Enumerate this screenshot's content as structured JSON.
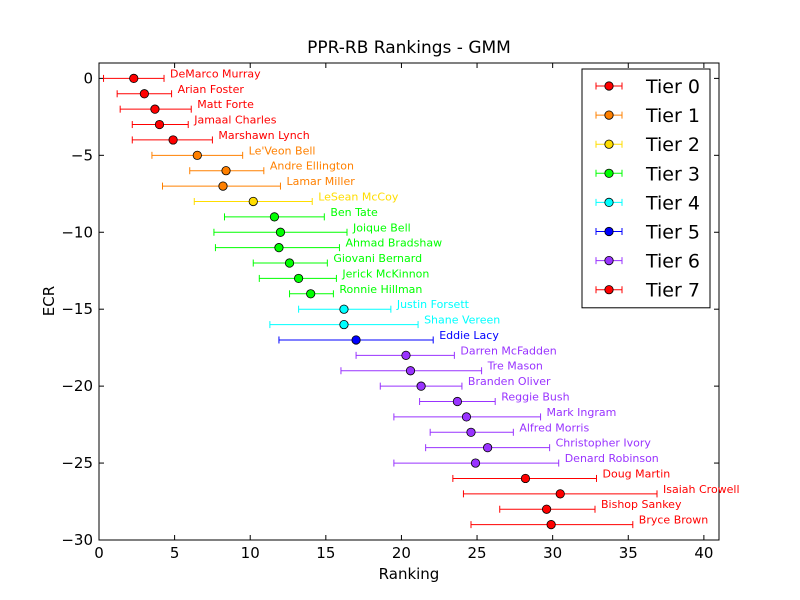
{
  "chart_data": {
    "type": "scatter",
    "title": "PPR-RB Rankings - GMM",
    "xlabel": "Ranking",
    "ylabel": "ECR",
    "xlim": [
      0,
      41
    ],
    "ylim": [
      -30,
      1
    ],
    "x_ticks": [
      0,
      5,
      10,
      15,
      20,
      25,
      30,
      35,
      40
    ],
    "x_tick_labels": [
      "0",
      "5",
      "10",
      "15",
      "20",
      "25",
      "30",
      "35",
      "40"
    ],
    "y_ticks": [
      0,
      -5,
      -10,
      -15,
      -20,
      -25,
      -30
    ],
    "y_tick_labels": [
      "0",
      "−5",
      "−10",
      "−15",
      "−20",
      "−25",
      "−30"
    ],
    "grid": false,
    "legend_position": "top-right",
    "tiers": [
      {
        "name": "Tier 0",
        "color": "#ff0000"
      },
      {
        "name": "Tier 1",
        "color": "#ff8000"
      },
      {
        "name": "Tier 2",
        "color": "#ffdd00"
      },
      {
        "name": "Tier 3",
        "color": "#00ff00"
      },
      {
        "name": "Tier 4",
        "color": "#00ffff"
      },
      {
        "name": "Tier 5",
        "color": "#0000ff"
      },
      {
        "name": "Tier 6",
        "color": "#9933ff"
      },
      {
        "name": "Tier 7",
        "color": "#ff0000"
      }
    ],
    "points": [
      {
        "label": "DeMarco Murray",
        "tier": 0,
        "x": 2.3,
        "y": 0,
        "xmin": 0.3,
        "xmax": 4.3
      },
      {
        "label": "Arian Foster",
        "tier": 0,
        "x": 3.0,
        "y": -1,
        "xmin": 1.2,
        "xmax": 4.8
      },
      {
        "label": "Matt Forte",
        "tier": 0,
        "x": 3.7,
        "y": -2,
        "xmin": 1.4,
        "xmax": 6.1
      },
      {
        "label": "Jamaal Charles",
        "tier": 0,
        "x": 4.0,
        "y": -3,
        "xmin": 2.2,
        "xmax": 5.9
      },
      {
        "label": "Marshawn Lynch",
        "tier": 0,
        "x": 4.9,
        "y": -4,
        "xmin": 2.2,
        "xmax": 7.5
      },
      {
        "label": "Le'Veon Bell",
        "tier": 1,
        "x": 6.5,
        "y": -5,
        "xmin": 3.5,
        "xmax": 9.5
      },
      {
        "label": "Andre Ellington",
        "tier": 1,
        "x": 8.4,
        "y": -6,
        "xmin": 6.0,
        "xmax": 10.9
      },
      {
        "label": "Lamar Miller",
        "tier": 1,
        "x": 8.2,
        "y": -7,
        "xmin": 4.2,
        "xmax": 12.0
      },
      {
        "label": "LeSean McCoy",
        "tier": 2,
        "x": 10.2,
        "y": -8,
        "xmin": 6.3,
        "xmax": 14.1
      },
      {
        "label": "Ben Tate",
        "tier": 3,
        "x": 11.6,
        "y": -9,
        "xmin": 8.3,
        "xmax": 14.9
      },
      {
        "label": "Joique Bell",
        "tier": 3,
        "x": 12.0,
        "y": -10,
        "xmin": 7.6,
        "xmax": 16.4
      },
      {
        "label": "Ahmad Bradshaw",
        "tier": 3,
        "x": 11.9,
        "y": -11,
        "xmin": 7.7,
        "xmax": 15.9
      },
      {
        "label": "Giovani Bernard",
        "tier": 3,
        "x": 12.6,
        "y": -12,
        "xmin": 10.2,
        "xmax": 15.1
      },
      {
        "label": "Jerick McKinnon",
        "tier": 3,
        "x": 13.2,
        "y": -13,
        "xmin": 10.6,
        "xmax": 15.7
      },
      {
        "label": "Ronnie Hillman",
        "tier": 3,
        "x": 14.0,
        "y": -14,
        "xmin": 12.6,
        "xmax": 15.5
      },
      {
        "label": "Justin Forsett",
        "tier": 4,
        "x": 16.2,
        "y": -15,
        "xmin": 13.2,
        "xmax": 19.3
      },
      {
        "label": "Shane Vereen",
        "tier": 4,
        "x": 16.2,
        "y": -16,
        "xmin": 11.3,
        "xmax": 21.1
      },
      {
        "label": "Eddie Lacy",
        "tier": 5,
        "x": 17.0,
        "y": -17,
        "xmin": 11.9,
        "xmax": 22.1
      },
      {
        "label": "Darren McFadden",
        "tier": 6,
        "x": 20.3,
        "y": -18,
        "xmin": 17.0,
        "xmax": 23.5
      },
      {
        "label": "Tre Mason",
        "tier": 6,
        "x": 20.6,
        "y": -19,
        "xmin": 16.0,
        "xmax": 25.3
      },
      {
        "label": "Branden Oliver",
        "tier": 6,
        "x": 21.3,
        "y": -20,
        "xmin": 18.6,
        "xmax": 24.0
      },
      {
        "label": "Reggie Bush",
        "tier": 6,
        "x": 23.7,
        "y": -21,
        "xmin": 21.2,
        "xmax": 26.2
      },
      {
        "label": "Mark Ingram",
        "tier": 6,
        "x": 24.3,
        "y": -22,
        "xmin": 19.5,
        "xmax": 29.2
      },
      {
        "label": "Alfred Morris",
        "tier": 6,
        "x": 24.6,
        "y": -23,
        "xmin": 21.9,
        "xmax": 27.4
      },
      {
        "label": "Christopher Ivory",
        "tier": 6,
        "x": 25.7,
        "y": -24,
        "xmin": 21.6,
        "xmax": 29.8
      },
      {
        "label": "Denard Robinson",
        "tier": 6,
        "x": 24.9,
        "y": -25,
        "xmin": 19.5,
        "xmax": 30.4
      },
      {
        "label": "Doug Martin",
        "tier": 7,
        "x": 28.2,
        "y": -26,
        "xmin": 23.4,
        "xmax": 32.9
      },
      {
        "label": "Isaiah Crowell",
        "tier": 7,
        "x": 30.5,
        "y": -27,
        "xmin": 24.1,
        "xmax": 36.9
      },
      {
        "label": "Bishop Sankey",
        "tier": 7,
        "x": 29.6,
        "y": -28,
        "xmin": 26.5,
        "xmax": 32.8
      },
      {
        "label": "Bryce Brown",
        "tier": 7,
        "x": 29.9,
        "y": -29,
        "xmin": 24.6,
        "xmax": 35.3
      }
    ]
  }
}
